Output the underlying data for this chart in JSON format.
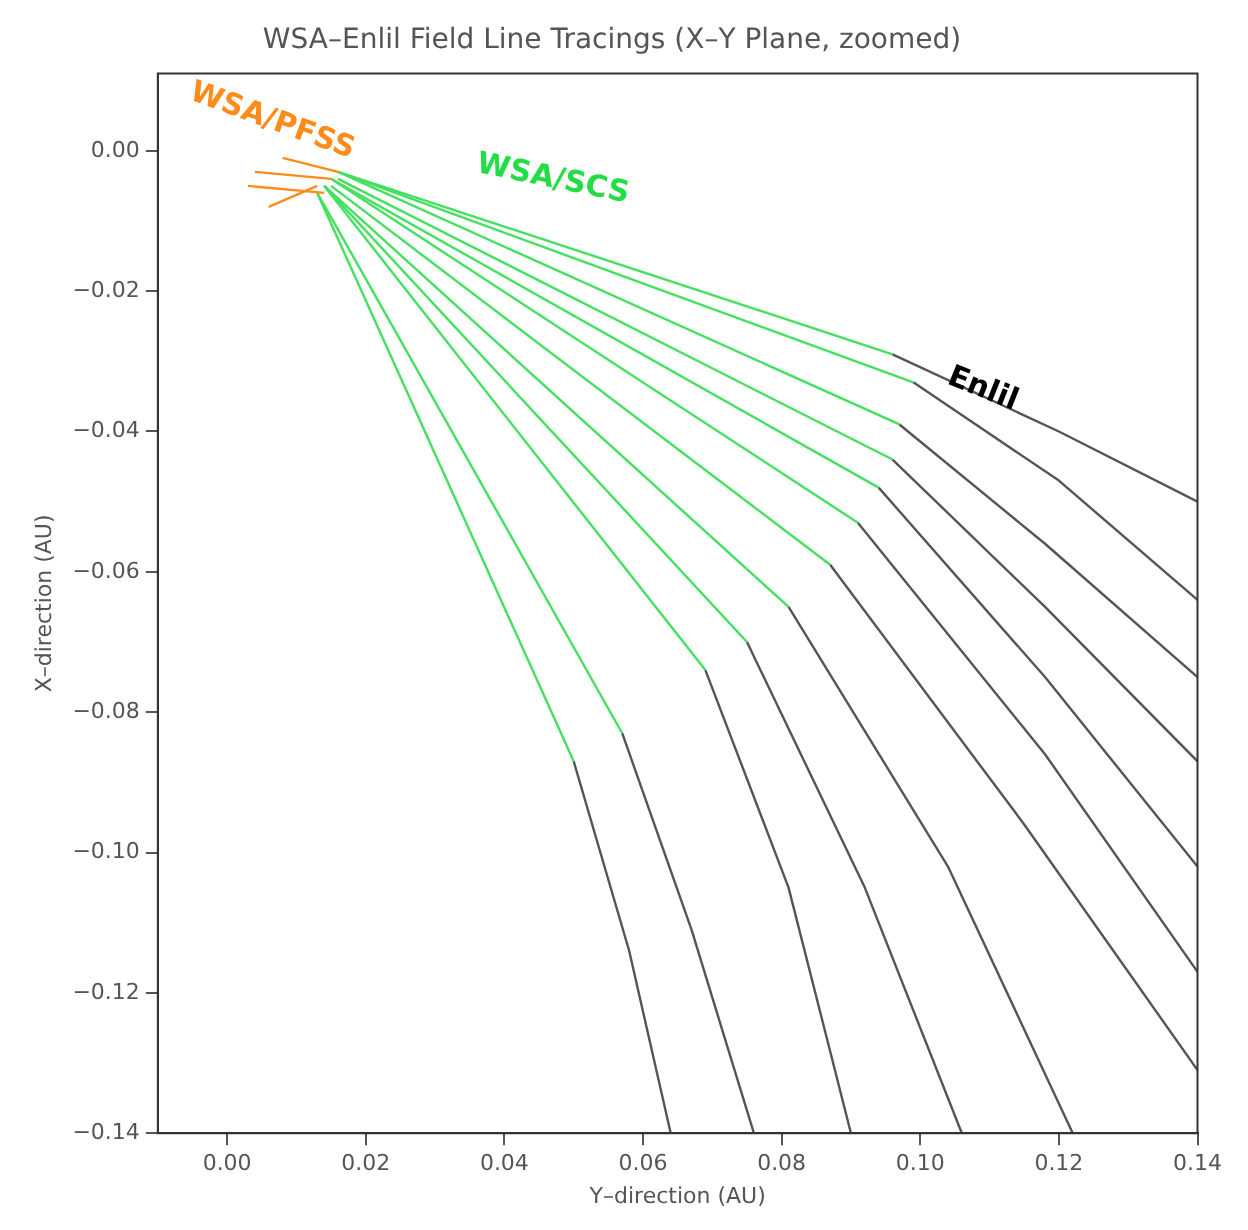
{
  "chart_data": {
    "type": "line",
    "title": "WSA–Enlil Field Line Tracings (X–Y Plane, zoomed)",
    "xlabel": "Y–direction (AU)",
    "ylabel": "X–direction (AU)",
    "marker": "none",
    "line_style": "solid",
    "xlim": [
      -0.01,
      0.14
    ],
    "ylim": [
      -0.14,
      0.011
    ],
    "xticks": [
      {
        "value": 0,
        "label": "0.00"
      },
      {
        "value": 0.02,
        "label": "0.02"
      },
      {
        "value": 0.04,
        "label": "0.04"
      },
      {
        "value": 0.06,
        "label": "0.06"
      },
      {
        "value": 0.08,
        "label": "0.08"
      },
      {
        "value": 0.1,
        "label": "0.10"
      },
      {
        "value": 0.12,
        "label": "0.12"
      },
      {
        "value": 0.14,
        "label": "0.14"
      }
    ],
    "yticks": [
      {
        "value": -0.14,
        "label": "−0.14"
      },
      {
        "value": -0.12,
        "label": "−0.12"
      },
      {
        "value": -0.1,
        "label": "−0.10"
      },
      {
        "value": -0.08,
        "label": "−0.08"
      },
      {
        "value": -0.06,
        "label": "−0.06"
      },
      {
        "value": -0.04,
        "label": "−0.04"
      },
      {
        "value": -0.02,
        "label": "−0.02"
      },
      {
        "value": 0,
        "label": "0.00"
      }
    ],
    "annotations": [
      "WSA/PFSS",
      "WSA/SCS",
      {
        "text": "Enlil",
        "x": 0.109,
        "y": -0.034
      }
    ],
    "series": [
      {
        "color": "#ff8c1a",
        "x": [
          0.004,
          0.015
        ],
        "values": [
          -0.003,
          -0.004
        ]
      },
      {
        "color": "#ff8c1a",
        "x": [
          0.003,
          0.014
        ],
        "values": [
          -0.005,
          -0.006
        ]
      },
      {
        "color": "#ff8c1a",
        "x": [
          0.008,
          0.016
        ],
        "values": [
          -0.001,
          -0.003
        ]
      },
      {
        "color": "#ff8c1a",
        "x": [
          0.006,
          0.013
        ],
        "values": [
          -0.008,
          -0.005
        ]
      },
      {
        "color": "#44e060",
        "x": [
          0.013,
          0.05
        ],
        "values": [
          -0.006,
          -0.087
        ]
      },
      {
        "color": "#44e060",
        "x": [
          0.013,
          0.057
        ],
        "values": [
          -0.006,
          -0.083
        ]
      },
      {
        "color": "#44e060",
        "x": [
          0.014,
          0.069
        ],
        "values": [
          -0.005,
          -0.074
        ]
      },
      {
        "color": "#44e060",
        "x": [
          0.014,
          0.075
        ],
        "values": [
          -0.005,
          -0.07
        ]
      },
      {
        "color": "#44e060",
        "x": [
          0.014,
          0.081
        ],
        "values": [
          -0.005,
          -0.065
        ]
      },
      {
        "color": "#44e060",
        "x": [
          0.015,
          0.087
        ],
        "values": [
          -0.005,
          -0.059
        ]
      },
      {
        "color": "#44e060",
        "x": [
          0.015,
          0.091
        ],
        "values": [
          -0.004,
          -0.053
        ]
      },
      {
        "color": "#44e060",
        "x": [
          0.015,
          0.094
        ],
        "values": [
          -0.004,
          -0.048
        ]
      },
      {
        "color": "#44e060",
        "x": [
          0.016,
          0.096
        ],
        "values": [
          -0.004,
          -0.044
        ]
      },
      {
        "color": "#44e060",
        "x": [
          0.016,
          0.097
        ],
        "values": [
          -0.003,
          -0.039
        ]
      },
      {
        "color": "#44e060",
        "x": [
          0.016,
          0.099
        ],
        "values": [
          -0.003,
          -0.033
        ]
      },
      {
        "color": "#44e060",
        "x": [
          0.016,
          0.096
        ],
        "values": [
          -0.003,
          -0.029
        ]
      },
      {
        "color": "#555555",
        "x": [
          0.05,
          0.058,
          0.064
        ],
        "values": [
          -0.087,
          -0.114,
          -0.14
        ]
      },
      {
        "color": "#555555",
        "x": [
          0.057,
          0.067,
          0.076
        ],
        "values": [
          -0.083,
          -0.111,
          -0.14
        ]
      },
      {
        "color": "#555555",
        "x": [
          0.069,
          0.081,
          0.09
        ],
        "values": [
          -0.074,
          -0.105,
          -0.14
        ]
      },
      {
        "color": "#555555",
        "x": [
          0.075,
          0.092,
          0.106
        ],
        "values": [
          -0.07,
          -0.105,
          -0.14
        ]
      },
      {
        "color": "#555555",
        "x": [
          0.081,
          0.104,
          0.122
        ],
        "values": [
          -0.065,
          -0.102,
          -0.14
        ]
      },
      {
        "color": "#555555",
        "x": [
          0.087,
          0.115,
          0.14
        ],
        "values": [
          -0.059,
          -0.096,
          -0.131
        ]
      },
      {
        "color": "#555555",
        "x": [
          0.091,
          0.118,
          0.14
        ],
        "values": [
          -0.053,
          -0.086,
          -0.117
        ]
      },
      {
        "color": "#555555",
        "x": [
          0.094,
          0.118,
          0.14
        ],
        "values": [
          -0.048,
          -0.075,
          -0.102
        ]
      },
      {
        "color": "#555555",
        "x": [
          0.096,
          0.118,
          0.14
        ],
        "values": [
          -0.044,
          -0.065,
          -0.087
        ]
      },
      {
        "color": "#555555",
        "x": [
          0.097,
          0.118,
          0.14
        ],
        "values": [
          -0.039,
          -0.056,
          -0.075
        ]
      },
      {
        "color": "#555555",
        "x": [
          0.099,
          0.12,
          0.14
        ],
        "values": [
          -0.033,
          -0.047,
          -0.064
        ]
      },
      {
        "color": "#555555",
        "x": [
          0.096,
          0.12,
          0.14
        ],
        "values": [
          -0.029,
          -0.04,
          -0.05
        ]
      }
    ]
  }
}
